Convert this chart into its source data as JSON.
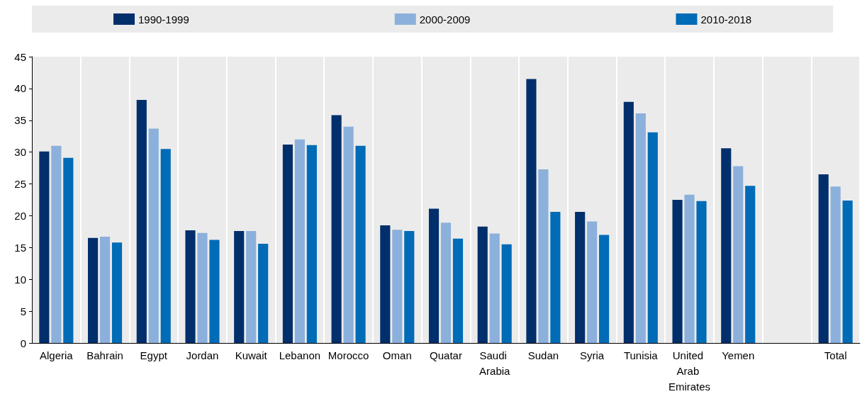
{
  "chart_data": {
    "type": "bar",
    "categories": [
      "Algeria",
      "Bahrain",
      "Egypt",
      "Jordan",
      "Kuwait",
      "Lebanon",
      "Morocco",
      "Oman",
      "Quatar",
      "Saudi Arabia",
      "Sudan",
      "Syria",
      "Tunisia",
      "United Arab Emirates",
      "Yemen",
      null,
      "Total"
    ],
    "series": [
      {
        "name": "1990-1999",
        "color": "#002f6c",
        "values": [
          30.1,
          16.5,
          38.2,
          17.7,
          17.6,
          31.2,
          35.8,
          18.5,
          21.1,
          18.3,
          41.5,
          20.6,
          37.9,
          22.5,
          30.6,
          null,
          26.5
        ]
      },
      {
        "name": "2000-2009",
        "color": "#8cb0dc",
        "values": [
          31.0,
          16.7,
          33.7,
          17.3,
          17.6,
          32.0,
          34.0,
          17.8,
          18.9,
          17.2,
          27.3,
          19.1,
          36.1,
          23.3,
          27.8,
          null,
          24.6
        ]
      },
      {
        "name": "2010-2018",
        "color": "#006bb6",
        "values": [
          29.1,
          15.8,
          30.5,
          16.2,
          15.6,
          31.1,
          31.0,
          17.6,
          16.4,
          15.5,
          20.6,
          17.0,
          33.1,
          22.3,
          24.7,
          null,
          22.4
        ]
      }
    ],
    "ylim": [
      0,
      45
    ],
    "yticks": [
      0,
      5,
      10,
      15,
      20,
      25,
      30,
      35,
      40,
      45
    ],
    "grid": "x",
    "legend": "top"
  }
}
